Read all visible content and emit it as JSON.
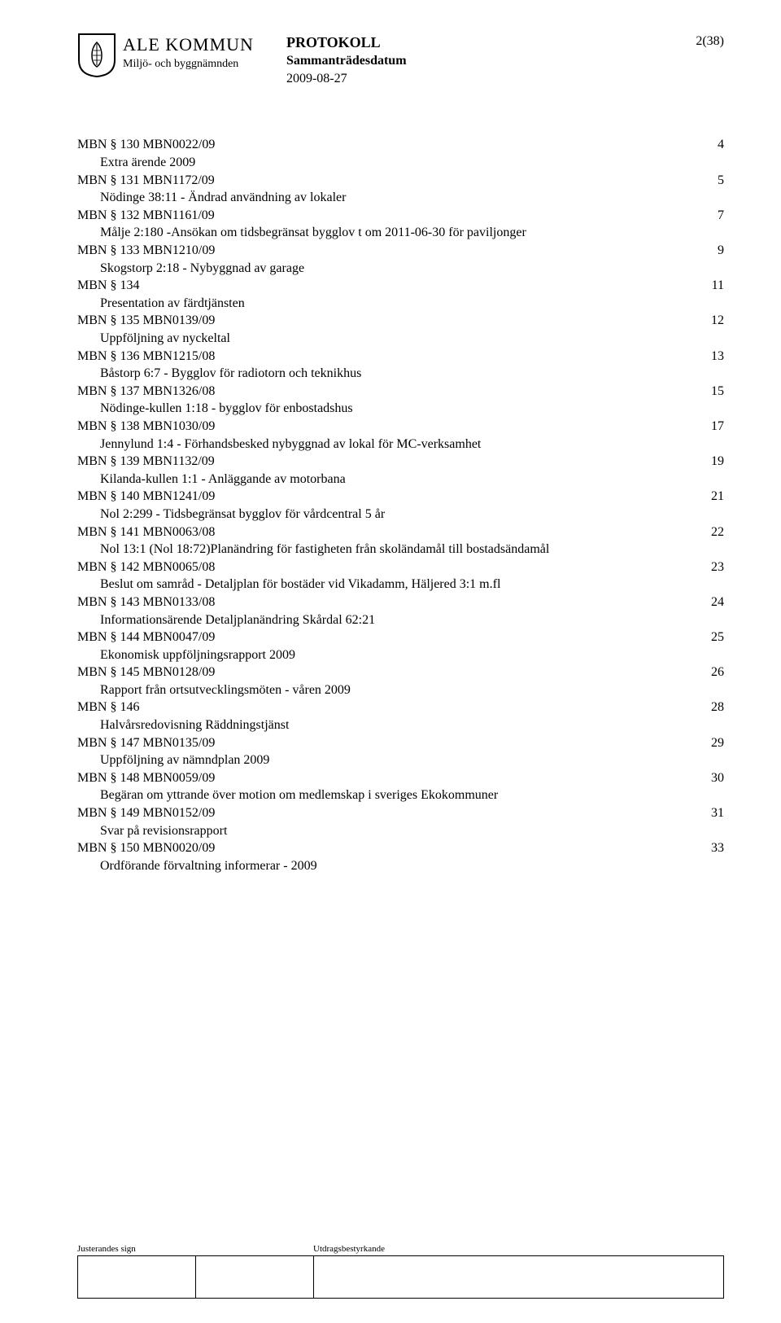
{
  "header": {
    "org_name": "ALE KOMMUN",
    "org_sub": "Miljö- och byggnämnden",
    "doc_title": "PROTOKOLL",
    "doc_subtitle": "Sammanträdesdatum",
    "doc_date": "2009-08-27",
    "page_num": "2(38)"
  },
  "toc": [
    {
      "t": "MBN § 130    MBN0022/09",
      "p": "4",
      "indent": false
    },
    {
      "t": "Extra ärende 2009",
      "p": "",
      "indent": true
    },
    {
      "t": "MBN § 131    MBN1172/09",
      "p": "5",
      "indent": false
    },
    {
      "t": "Nödinge 38:11 - Ändrad användning av lokaler",
      "p": "",
      "indent": true
    },
    {
      "t": "MBN § 132    MBN1161/09",
      "p": "7",
      "indent": false
    },
    {
      "t": "Målje 2:180 -Ansökan om tidsbegränsat bygglov t om 2011-06-30 för paviljonger",
      "p": "",
      "indent": true
    },
    {
      "t": "MBN § 133    MBN1210/09",
      "p": "9",
      "indent": false
    },
    {
      "t": "Skogstorp 2:18 - Nybyggnad av garage",
      "p": "",
      "indent": true
    },
    {
      "t": "MBN § 134",
      "p": "11",
      "indent": false
    },
    {
      "t": "Presentation av färdtjänsten",
      "p": "",
      "indent": true
    },
    {
      "t": "MBN § 135    MBN0139/09",
      "p": "12",
      "indent": false
    },
    {
      "t": "Uppföljning av nyckeltal",
      "p": "",
      "indent": true
    },
    {
      "t": "MBN § 136    MBN1215/08",
      "p": "13",
      "indent": false
    },
    {
      "t": "Båstorp 6:7 - Bygglov för radiotorn och teknikhus",
      "p": "",
      "indent": true
    },
    {
      "t": "MBN § 137    MBN1326/08",
      "p": "15",
      "indent": false
    },
    {
      "t": "Nödinge-kullen 1:18 - bygglov för enbostadshus",
      "p": "",
      "indent": true
    },
    {
      "t": "MBN § 138    MBN1030/09",
      "p": "17",
      "indent": false
    },
    {
      "t": "Jennylund 1:4 - Förhandsbesked nybyggnad av lokal för MC-verksamhet",
      "p": "",
      "indent": true
    },
    {
      "t": "MBN § 139    MBN1132/09",
      "p": "19",
      "indent": false
    },
    {
      "t": "Kilanda-kullen 1:1 - Anläggande av motorbana",
      "p": "",
      "indent": true
    },
    {
      "t": "MBN § 140    MBN1241/09",
      "p": "21",
      "indent": false
    },
    {
      "t": "Nol 2:299 - Tidsbegränsat bygglov för vårdcentral 5 år",
      "p": "",
      "indent": true
    },
    {
      "t": "MBN § 141    MBN0063/08",
      "p": "22",
      "indent": false
    },
    {
      "t": "Nol 13:1 (Nol 18:72)Planändring för fastigheten från skoländamål till bostadsändamål",
      "p": "",
      "indent": true
    },
    {
      "t": "MBN § 142    MBN0065/08",
      "p": "23",
      "indent": false
    },
    {
      "t": "Beslut om samråd - Detaljplan för bostäder vid Vikadamm, Häljered 3:1 m.fl",
      "p": "",
      "indent": true
    },
    {
      "t": "MBN § 143    MBN0133/08",
      "p": "24",
      "indent": false
    },
    {
      "t": "Informationsärende Detaljplanändring Skårdal 62:21",
      "p": "",
      "indent": true
    },
    {
      "t": "MBN § 144    MBN0047/09",
      "p": "25",
      "indent": false
    },
    {
      "t": "Ekonomisk uppföljningsrapport 2009",
      "p": "",
      "indent": true
    },
    {
      "t": "MBN § 145    MBN0128/09",
      "p": "26",
      "indent": false
    },
    {
      "t": "Rapport från ortsutvecklingsmöten - våren 2009",
      "p": "",
      "indent": true
    },
    {
      "t": "MBN § 146",
      "p": "28",
      "indent": false
    },
    {
      "t": "Halvårsredovisning Räddningstjänst",
      "p": "",
      "indent": true
    },
    {
      "t": "MBN § 147    MBN0135/09",
      "p": "29",
      "indent": false
    },
    {
      "t": "Uppföljning av nämndplan 2009",
      "p": "",
      "indent": true
    },
    {
      "t": "MBN § 148    MBN0059/09",
      "p": "30",
      "indent": false
    },
    {
      "t": "Begäran om yttrande över motion om medlemskap i sveriges Ekokommuner",
      "p": "",
      "indent": true
    },
    {
      "t": "MBN § 149    MBN0152/09",
      "p": "31",
      "indent": false
    },
    {
      "t": "Svar på revisionsrapport",
      "p": "",
      "indent": true
    },
    {
      "t": "MBN § 150    MBN0020/09",
      "p": "33",
      "indent": false
    },
    {
      "t": "Ordförande förvaltning informerar - 2009",
      "p": "",
      "indent": true
    }
  ],
  "footer": {
    "left_label": "Justerandes sign",
    "right_label": "Utdragsbestyrkande"
  }
}
